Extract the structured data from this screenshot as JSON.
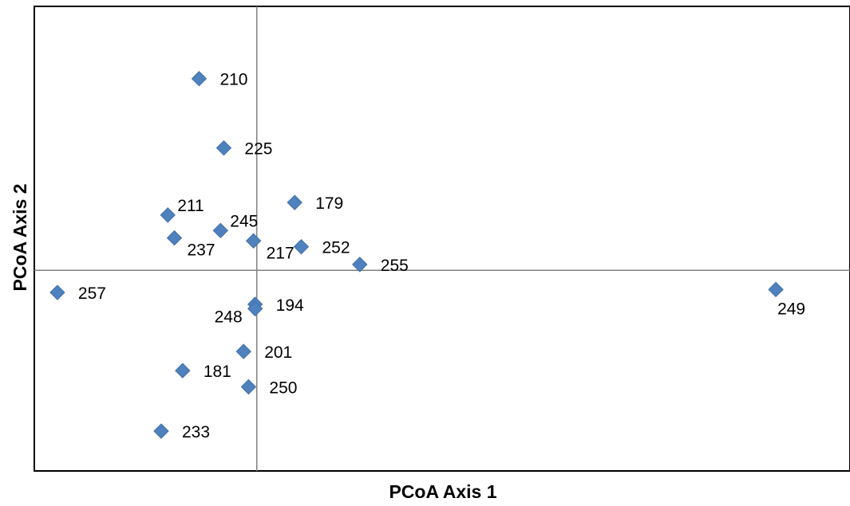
{
  "chart_data": {
    "type": "scatter",
    "title": "",
    "xlabel": "PCoA Axis 1",
    "ylabel": "PCoA Axis 2",
    "xlim": [
      -2.7,
      7.2
    ],
    "ylim": [
      -2.72,
      3.58
    ],
    "grid": false,
    "legend": "none",
    "colors": {
      "marker": "#4F81BD",
      "marker_edge": "#3F6FA8",
      "axis_line": "#808080",
      "frame": "#000000"
    },
    "points": [
      {
        "label": "210",
        "x": -0.7,
        "y": 2.6,
        "label_pos": "right"
      },
      {
        "label": "225",
        "x": -0.4,
        "y": 1.66,
        "label_pos": "right"
      },
      {
        "label": "179",
        "x": 0.46,
        "y": 0.92,
        "label_pos": "right"
      },
      {
        "label": "211",
        "x": -1.08,
        "y": 0.75,
        "label_pos": "above-right"
      },
      {
        "label": "245",
        "x": -0.44,
        "y": 0.54,
        "label_pos": "above-right"
      },
      {
        "label": "237",
        "x": -1.0,
        "y": 0.44,
        "label_pos": "below-right"
      },
      {
        "label": "217",
        "x": -0.04,
        "y": 0.4,
        "label_pos": "below-right"
      },
      {
        "label": "252",
        "x": 0.54,
        "y": 0.32,
        "label_pos": "right"
      },
      {
        "label": "255",
        "x": 1.25,
        "y": 0.08,
        "label_pos": "right"
      },
      {
        "label": "257",
        "x": -2.42,
        "y": -0.3,
        "label_pos": "right"
      },
      {
        "label": "249",
        "x": 6.3,
        "y": -0.26,
        "label_pos": "below"
      },
      {
        "label": "194",
        "x": -0.02,
        "y": -0.46,
        "label_pos": "right"
      },
      {
        "label": "248",
        "x": -0.02,
        "y": -0.52,
        "label_pos": "left"
      },
      {
        "label": "201",
        "x": -0.16,
        "y": -1.1,
        "label_pos": "right"
      },
      {
        "label": "181",
        "x": -0.9,
        "y": -1.36,
        "label_pos": "right"
      },
      {
        "label": "250",
        "x": -0.1,
        "y": -1.58,
        "label_pos": "right"
      },
      {
        "label": "233",
        "x": -1.16,
        "y": -2.18,
        "label_pos": "right"
      }
    ]
  }
}
